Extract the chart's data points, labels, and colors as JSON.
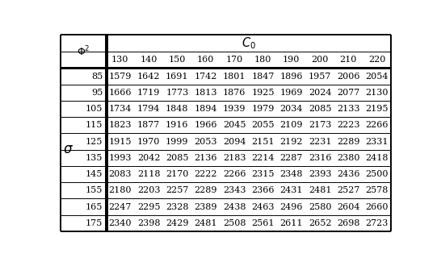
{
  "col_values": [
    130,
    140,
    150,
    160,
    170,
    180,
    190,
    200,
    210,
    220
  ],
  "row_values": [
    85,
    95,
    105,
    115,
    125,
    135,
    145,
    155,
    165,
    175
  ],
  "table_data": [
    [
      1579,
      1642,
      1691,
      1742,
      1801,
      1847,
      1896,
      1957,
      2006,
      2054
    ],
    [
      1666,
      1719,
      1773,
      1813,
      1876,
      1925,
      1969,
      2024,
      2077,
      2130
    ],
    [
      1734,
      1794,
      1848,
      1894,
      1939,
      1979,
      2034,
      2085,
      2133,
      2195
    ],
    [
      1823,
      1877,
      1916,
      1966,
      2045,
      2055,
      2109,
      2173,
      2223,
      2266
    ],
    [
      1915,
      1970,
      1999,
      2053,
      2094,
      2151,
      2192,
      2231,
      2289,
      2331
    ],
    [
      1993,
      2042,
      2085,
      2136,
      2183,
      2214,
      2287,
      2316,
      2380,
      2418
    ],
    [
      2083,
      2118,
      2170,
      2222,
      2266,
      2315,
      2348,
      2393,
      2436,
      2500
    ],
    [
      2180,
      2203,
      2257,
      2289,
      2343,
      2366,
      2431,
      2481,
      2527,
      2578
    ],
    [
      2247,
      2295,
      2328,
      2389,
      2438,
      2463,
      2496,
      2580,
      2604,
      2660
    ],
    [
      2340,
      2398,
      2429,
      2481,
      2508,
      2561,
      2611,
      2652,
      2698,
      2723
    ]
  ],
  "bg_color": "#ffffff",
  "line_color": "#000000",
  "font_size": 8.0,
  "header_font_size": 9.0,
  "fig_width": 5.46,
  "fig_height": 3.25,
  "dpi": 100
}
